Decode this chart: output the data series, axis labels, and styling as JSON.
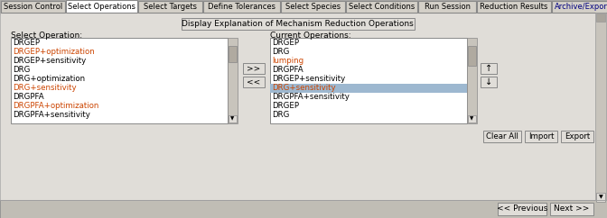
{
  "tabs": [
    "Session Control",
    "Select Operations",
    "Select Targets",
    "Define Tolerances",
    "Select Species",
    "Select Conditions",
    "Run Session",
    "Reduction Results",
    "Archive/Export"
  ],
  "active_tab_idx": 1,
  "bg_color": "#d4d0c8",
  "panel_bg": "#e0ddd8",
  "tab_bg": "#d4d0c8",
  "active_tab_bg": "#ffffff",
  "button_bg": "#e0ddd8",
  "main_button_text": "Display Explanation of Mechanism Reduction Operations",
  "select_op_label": "Select Operation:",
  "current_op_label": "Current Operations:",
  "select_op_items": [
    {
      "text": "DRGEP",
      "color": "#000000"
    },
    {
      "text": "DRGEP+optimization",
      "color": "#cc4400"
    },
    {
      "text": "DRGEP+sensitivity",
      "color": "#000000"
    },
    {
      "text": "DRG",
      "color": "#000000"
    },
    {
      "text": "DRG+optimization",
      "color": "#000000"
    },
    {
      "text": "DRG+sensitivity",
      "color": "#cc4400"
    },
    {
      "text": "DRGPFA",
      "color": "#000000"
    },
    {
      "text": "DRGPFA+optimization",
      "color": "#cc4400"
    },
    {
      "text": "DRGPFA+sensitivity",
      "color": "#000000"
    }
  ],
  "current_op_items": [
    {
      "text": "DRGEP",
      "color": "#000000"
    },
    {
      "text": "DRG",
      "color": "#000000"
    },
    {
      "text": "lumping",
      "color": "#cc4400"
    },
    {
      "text": "DRGPFA",
      "color": "#000000"
    },
    {
      "text": "DRGEP+sensitivity",
      "color": "#000000"
    },
    {
      "text": "DRG+sensitivity",
      "color": "#cc4400"
    },
    {
      "text": "DRGPFA+sensitivity",
      "color": "#000000"
    },
    {
      "text": "DRGEP",
      "color": "#000000"
    },
    {
      "text": "DRG",
      "color": "#000000"
    }
  ],
  "highlight_row": 5,
  "highlight_bg": "#9db8d0",
  "bottom_buttons": [
    "Clear All",
    "Import",
    "Export"
  ],
  "nav_buttons": [
    "<< Previous",
    "Next >>"
  ],
  "last_tab_color": "#000080",
  "scrollbar_bg": "#c8c4bc",
  "scrollbar_thumb": "#a8a49c",
  "list_bg": "#ffffff",
  "nav_bar_color": "#c0bdb5",
  "tab_widths": [
    72,
    80,
    72,
    86,
    72,
    80,
    65,
    83,
    70
  ]
}
